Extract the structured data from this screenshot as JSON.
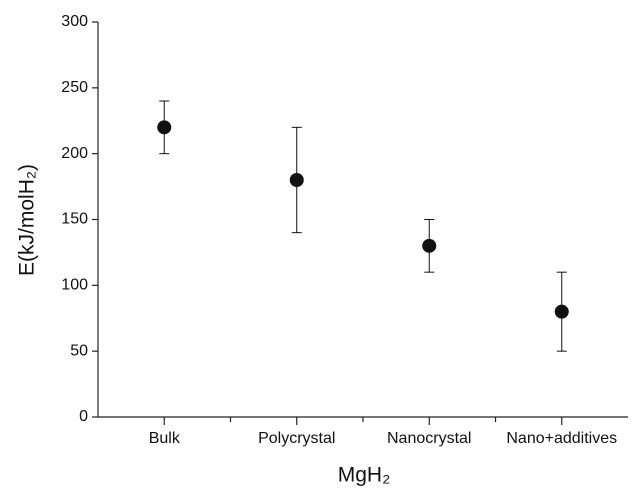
{
  "chart_data": {
    "type": "errorbar",
    "xlabel": "MgH₂",
    "ylabel": "E(kJ/molH₂)",
    "categories": [
      "Bulk",
      "Polycrystal",
      "Nanocrystal",
      "Nano+additives"
    ],
    "values": [
      220,
      180,
      130,
      80
    ],
    "errors": [
      20,
      40,
      20,
      30
    ],
    "color": "#111111",
    "ylim": [
      0,
      300
    ],
    "yticks": [
      0,
      50,
      100,
      150,
      200,
      250,
      300
    ],
    "grid": false
  }
}
